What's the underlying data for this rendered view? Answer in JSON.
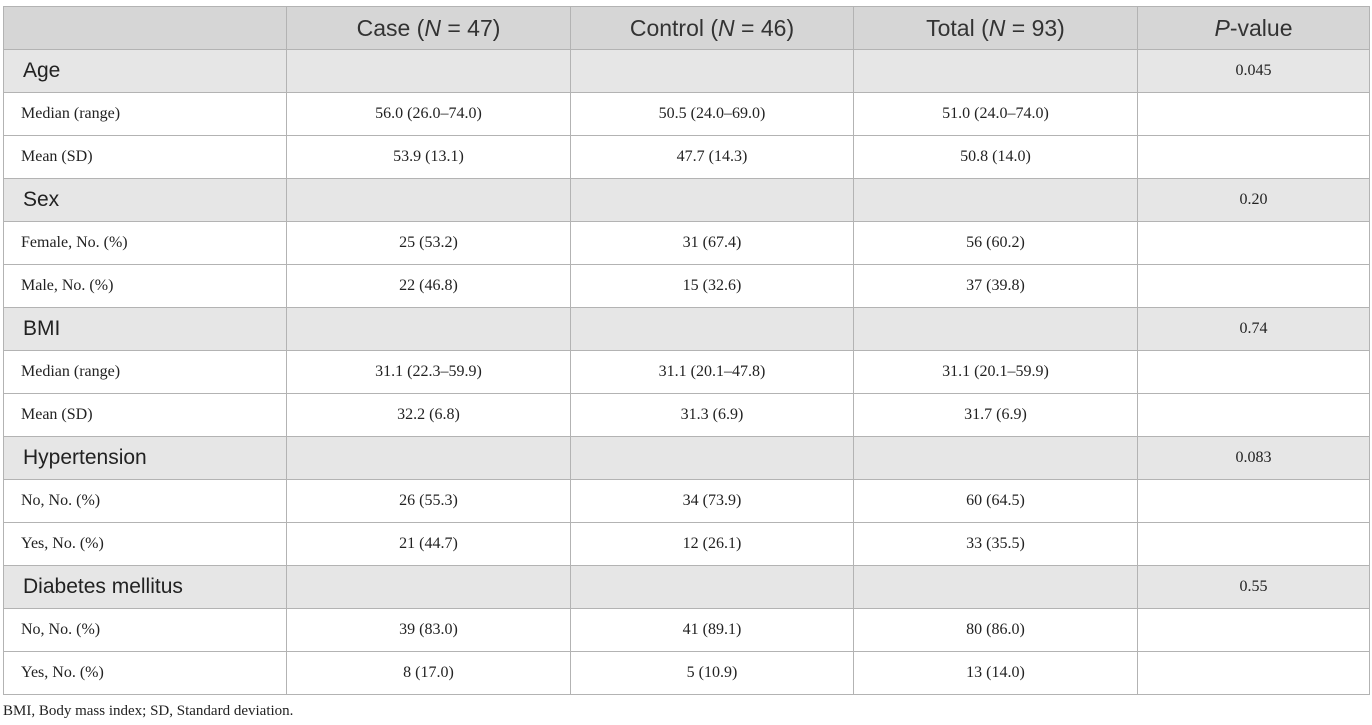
{
  "header": {
    "col0": "",
    "case_prefix": "Case (",
    "case_n": "N",
    "case_suffix": " = 47)",
    "control_prefix": "Control (",
    "control_n": "N",
    "control_suffix": " = 46)",
    "total_prefix": "Total (",
    "total_n": "N",
    "total_suffix": " = 93)",
    "p_italic": "P",
    "p_suffix": "-value"
  },
  "sections": [
    {
      "label": "Age",
      "p_value": "0.045",
      "rows": [
        {
          "label": "Median (range)",
          "case": "56.0 (26.0–74.0)",
          "control": "50.5 (24.0–69.0)",
          "total": "51.0 (24.0–74.0)"
        },
        {
          "label": "Mean (SD)",
          "case": "53.9 (13.1)",
          "control": "47.7 (14.3)",
          "total": "50.8 (14.0)"
        }
      ]
    },
    {
      "label": "Sex",
      "p_value": "0.20",
      "rows": [
        {
          "label": "Female, No. (%)",
          "case": "25 (53.2)",
          "control": "31 (67.4)",
          "total": "56 (60.2)"
        },
        {
          "label": "Male, No. (%)",
          "case": "22 (46.8)",
          "control": "15 (32.6)",
          "total": "37 (39.8)"
        }
      ]
    },
    {
      "label": "BMI",
      "p_value": "0.74",
      "rows": [
        {
          "label": "Median (range)",
          "case": "31.1 (22.3–59.9)",
          "control": "31.1 (20.1–47.8)",
          "total": "31.1 (20.1–59.9)"
        },
        {
          "label": "Mean (SD)",
          "case": "32.2 (6.8)",
          "control": "31.3 (6.9)",
          "total": "31.7 (6.9)"
        }
      ]
    },
    {
      "label": "Hypertension",
      "p_value": "0.083",
      "rows": [
        {
          "label": "No, No. (%)",
          "case": "26 (55.3)",
          "control": "34 (73.9)",
          "total": "60 (64.5)"
        },
        {
          "label": "Yes, No. (%)",
          "case": "21 (44.7)",
          "control": "12 (26.1)",
          "total": "33 (35.5)"
        }
      ]
    },
    {
      "label": "Diabetes mellitus",
      "p_value": "0.55",
      "rows": [
        {
          "label": "No, No. (%)",
          "case": "39 (83.0)",
          "control": "41 (89.1)",
          "total": "80 (86.0)"
        },
        {
          "label": "Yes, No. (%)",
          "case": "8 (17.0)",
          "control": "5 (10.9)",
          "total": "13 (14.0)"
        }
      ]
    }
  ],
  "footnote": "BMI, Body mass index; SD, Standard deviation.",
  "colors": {
    "header_bg": "#d6d6d6",
    "section_bg": "#e6e6e6",
    "border": "#b3b3b3",
    "text": "#222222"
  }
}
